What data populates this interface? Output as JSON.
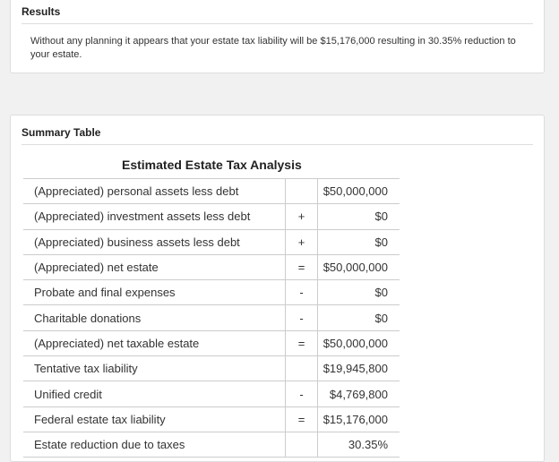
{
  "results": {
    "title": "Results",
    "text": "Without any planning it appears that your estate tax liability will be $15,176,000 resulting in 30.35% reduction to your estate."
  },
  "summary": {
    "title": "Summary Table",
    "table_caption": "Estimated Estate Tax Analysis",
    "rows": [
      {
        "label": "(Appreciated) personal assets less debt",
        "op": "",
        "value": "$50,000,000"
      },
      {
        "label": "(Appreciated) investment assets less debt",
        "op": "+",
        "value": "$0"
      },
      {
        "label": "(Appreciated) business assets less debt",
        "op": "+",
        "value": "$0"
      },
      {
        "label": "(Appreciated) net estate",
        "op": "=",
        "value": "$50,000,000"
      },
      {
        "label": "Probate and final expenses",
        "op": "-",
        "value": "$0"
      },
      {
        "label": "Charitable donations",
        "op": "-",
        "value": "$0"
      },
      {
        "label": "(Appreciated) net taxable estate",
        "op": "=",
        "value": "$50,000,000"
      },
      {
        "label": "Tentative tax liability",
        "op": "",
        "value": "$19,945,800"
      },
      {
        "label": "Unified credit",
        "op": "-",
        "value": "$4,769,800"
      },
      {
        "label": "Federal estate tax liability",
        "op": "=",
        "value": "$15,176,000"
      },
      {
        "label": "Estate reduction due to taxes",
        "op": "",
        "value": "30.35%"
      }
    ]
  },
  "colors": {
    "page_background": "#f1f1f1",
    "panel_background": "#ffffff",
    "border": "#dddddd",
    "marker": "#e02020"
  }
}
